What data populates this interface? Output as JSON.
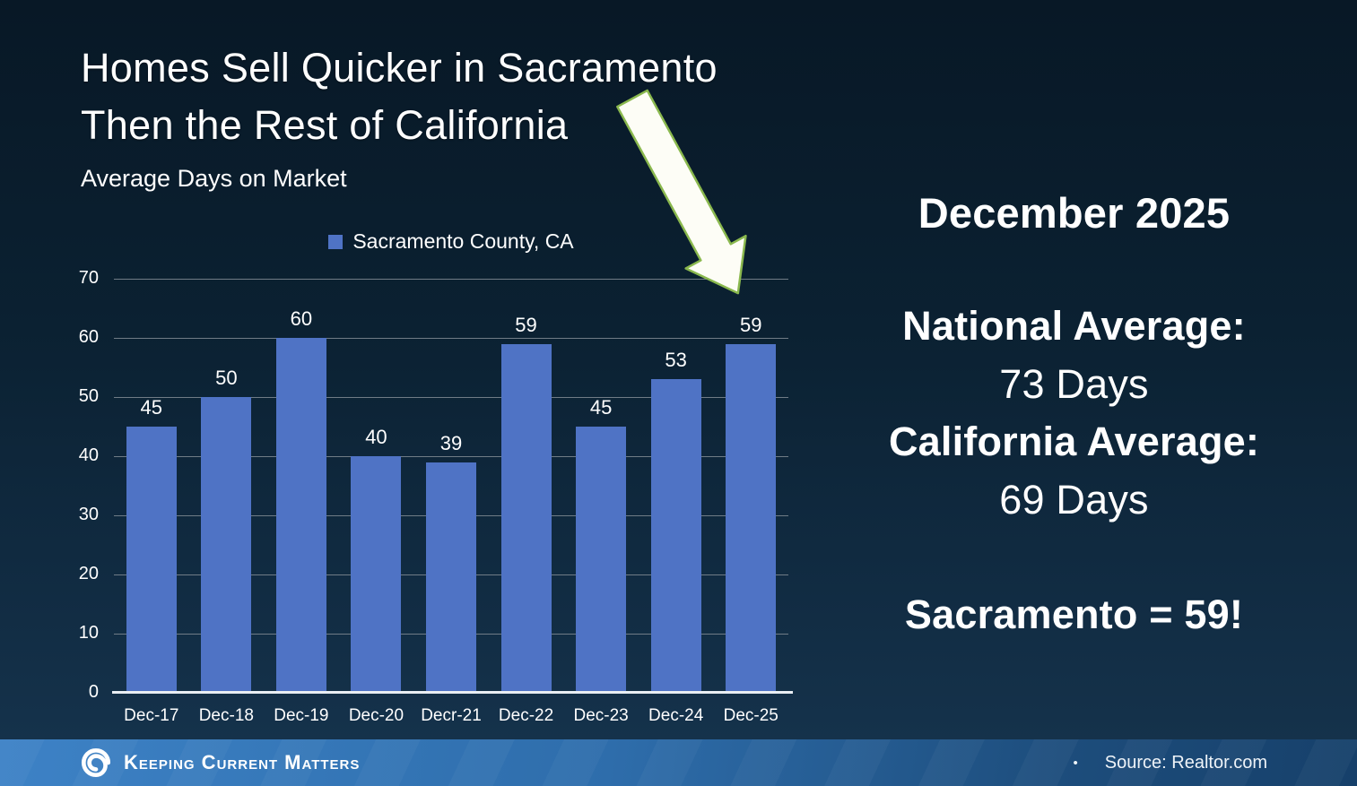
{
  "slide": {
    "title_line1": "Homes Sell Quicker in Sacramento",
    "title_line2": "Then the Rest of California",
    "subtitle": "Average Days on Market"
  },
  "chart_data": {
    "type": "bar",
    "title": "Average Days on Market",
    "legend": "Sacramento County, CA",
    "legend_position": "top",
    "categories": [
      "Dec-17",
      "Dec-18",
      "Dec-19",
      "Dec-20",
      "Decr-21",
      "Dec-22",
      "Dec-23",
      "Dec-24",
      "Dec-25"
    ],
    "values": [
      45,
      50,
      60,
      40,
      39,
      59,
      45,
      53,
      59
    ],
    "xlabel": "",
    "ylabel": "",
    "ylim": [
      0,
      70
    ],
    "yticks": [
      0,
      10,
      20,
      30,
      40,
      50,
      60,
      70
    ],
    "grid": true
  },
  "panel": {
    "heading": "December 2025",
    "national_label": "National Average:",
    "national_value": "73 Days",
    "california_label": "California Average:",
    "california_value": "69 Days",
    "highlight": "Sacramento = 59!"
  },
  "annotation_arrow": {
    "icon": "down-right-arrow-icon",
    "points_to": "Dec-25"
  },
  "footer": {
    "brand": "Keeping Current Matters",
    "logo_icon": "kcm-swirl-icon",
    "bullet": "•",
    "source": "Source: Realtor.com"
  },
  "colors": {
    "background_top": "#081826",
    "background_bottom": "#16344e",
    "bar": "#4f73c5",
    "gridline": "#707c86",
    "arrow_fill": "#fdfdf6",
    "arrow_stroke": "#8ab84e",
    "footer_left": "#3d82c6",
    "footer_right": "#16406a",
    "text": "#ffffff"
  }
}
